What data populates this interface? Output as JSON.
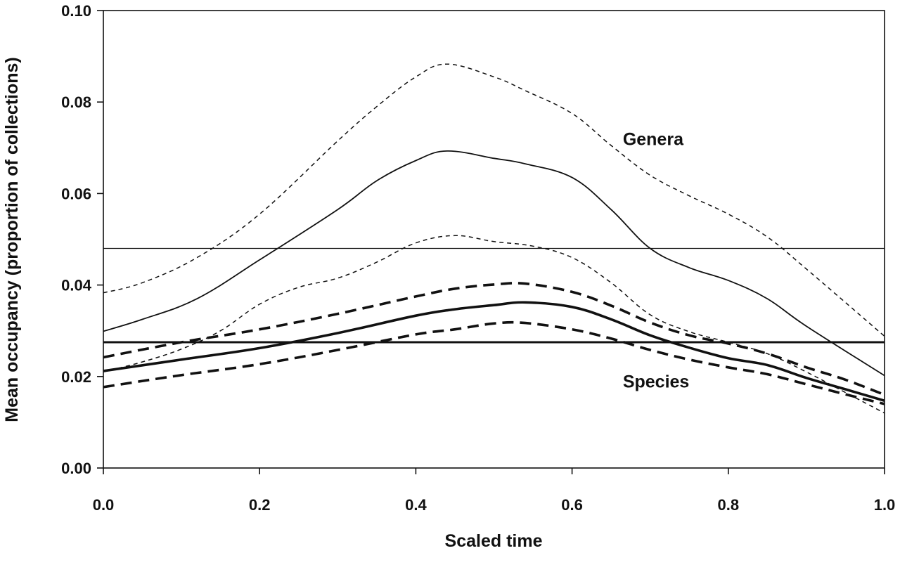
{
  "chart_data": {
    "type": "line",
    "title": "",
    "xlabel": "Scaled time",
    "ylabel": "Mean occupancy (proportion of collections)",
    "xlim": [
      0,
      1
    ],
    "ylim": [
      0,
      0.1
    ],
    "xticks": [
      0.0,
      0.2,
      0.4,
      0.6,
      0.8,
      1.0
    ],
    "xtick_labels": [
      "0.0",
      "0.2",
      "0.4",
      "0.6",
      "0.8",
      "1.0"
    ],
    "yticks": [
      0.0,
      0.02,
      0.04,
      0.06,
      0.08,
      0.1
    ],
    "ytick_labels": [
      "0.00",
      "0.02",
      "0.04",
      "0.06",
      "0.08",
      "0.10"
    ],
    "grid": false,
    "legend": "none",
    "annotations": [
      {
        "text": "Genera",
        "x": 0.665,
        "y": 0.072
      },
      {
        "text": "Species",
        "x": 0.665,
        "y": 0.019
      }
    ],
    "series": [
      {
        "group": "genera",
        "role": "mean",
        "style": "thin-solid",
        "x": [
          0,
          0.05,
          0.12,
          0.2,
          0.3,
          0.35,
          0.4,
          0.44,
          0.5,
          0.54,
          0.6,
          0.65,
          0.7,
          0.75,
          0.8,
          0.85,
          0.9,
          1.0
        ],
        "y": [
          0.0299,
          0.0325,
          0.037,
          0.0455,
          0.0565,
          0.0628,
          0.0672,
          0.0693,
          0.0677,
          0.0665,
          0.0635,
          0.0565,
          0.048,
          0.0438,
          0.041,
          0.037,
          0.031,
          0.0202
        ]
      },
      {
        "group": "genera",
        "role": "upper",
        "style": "thin-dashed",
        "x": [
          0,
          0.05,
          0.12,
          0.2,
          0.3,
          0.35,
          0.4,
          0.44,
          0.5,
          0.54,
          0.6,
          0.65,
          0.7,
          0.75,
          0.8,
          0.85,
          0.9,
          1.0
        ],
        "y": [
          0.0383,
          0.0405,
          0.046,
          0.0555,
          0.0715,
          0.079,
          0.0855,
          0.0883,
          0.0855,
          0.0825,
          0.0775,
          0.0705,
          0.064,
          0.0595,
          0.0555,
          0.0505,
          0.0435,
          0.0288
        ]
      },
      {
        "group": "genera",
        "role": "lower",
        "style": "thin-dashed",
        "x": [
          0,
          0.05,
          0.1,
          0.15,
          0.2,
          0.25,
          0.3,
          0.35,
          0.4,
          0.45,
          0.5,
          0.55,
          0.6,
          0.65,
          0.7,
          0.75,
          0.8,
          0.85,
          0.9,
          0.95,
          1.0
        ],
        "y": [
          0.021,
          0.0232,
          0.026,
          0.03,
          0.0358,
          0.0395,
          0.0415,
          0.045,
          0.0492,
          0.0508,
          0.0495,
          0.0485,
          0.046,
          0.0405,
          0.0335,
          0.0298,
          0.0275,
          0.025,
          0.021,
          0.0165,
          0.012
        ]
      },
      {
        "group": "species",
        "role": "mean",
        "style": "thick-solid",
        "x": [
          0,
          0.1,
          0.2,
          0.3,
          0.4,
          0.45,
          0.5,
          0.54,
          0.6,
          0.65,
          0.7,
          0.75,
          0.8,
          0.85,
          0.9,
          0.95,
          1.0
        ],
        "y": [
          0.0212,
          0.0237,
          0.0262,
          0.0295,
          0.0333,
          0.0347,
          0.0356,
          0.0362,
          0.0352,
          0.0325,
          0.029,
          0.0263,
          0.024,
          0.0225,
          0.0197,
          0.0172,
          0.0147
        ]
      },
      {
        "group": "species",
        "role": "upper",
        "style": "thick-dashed",
        "x": [
          0,
          0.1,
          0.2,
          0.3,
          0.4,
          0.45,
          0.5,
          0.54,
          0.6,
          0.65,
          0.7,
          0.75,
          0.8,
          0.85,
          0.9,
          0.95,
          1.0
        ],
        "y": [
          0.0242,
          0.0275,
          0.0303,
          0.0337,
          0.0375,
          0.0392,
          0.0401,
          0.0403,
          0.0385,
          0.0355,
          0.0318,
          0.029,
          0.0272,
          0.025,
          0.022,
          0.0193,
          0.016
        ]
      },
      {
        "group": "species",
        "role": "lower",
        "style": "thick-dashed",
        "x": [
          0,
          0.1,
          0.2,
          0.3,
          0.4,
          0.45,
          0.5,
          0.54,
          0.6,
          0.65,
          0.7,
          0.75,
          0.8,
          0.85,
          0.9,
          0.95,
          1.0
        ],
        "y": [
          0.0177,
          0.0203,
          0.0227,
          0.0258,
          0.0292,
          0.0303,
          0.0316,
          0.0317,
          0.0303,
          0.0283,
          0.0258,
          0.0237,
          0.022,
          0.0205,
          0.0183,
          0.0161,
          0.014
        ]
      },
      {
        "group": "genera",
        "role": "reference",
        "style": "thin-horizontal",
        "x": [
          0,
          1
        ],
        "y": [
          0.048,
          0.048
        ]
      },
      {
        "group": "species",
        "role": "reference",
        "style": "thick-horizontal",
        "x": [
          0,
          1
        ],
        "y": [
          0.0275,
          0.0275
        ]
      }
    ]
  }
}
